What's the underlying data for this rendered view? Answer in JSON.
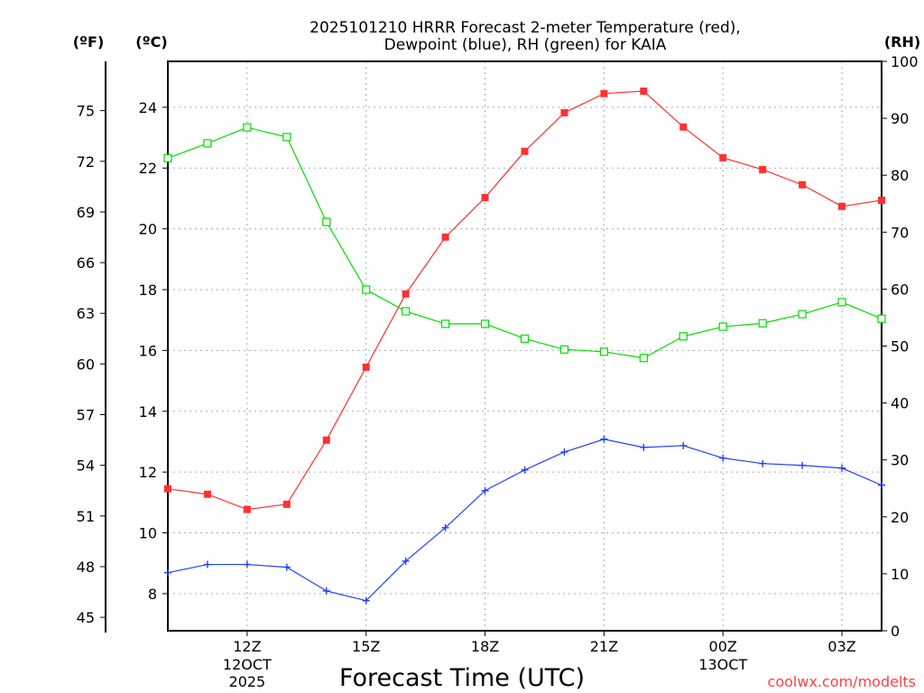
{
  "chart_data": {
    "type": "line",
    "title_lines": [
      "2025101210 HRRR Forecast 2-meter Temperature (red),",
      "Dewpoint (blue), RH (green) for KAIA"
    ],
    "xlabel": "Forecast Time (UTC)",
    "unit_labels": {
      "fahrenheit": "(ºF)",
      "celsius": "(ºC)",
      "rh": "(RH)"
    },
    "credit": "coolwx.com/modelts",
    "x_hours": [
      10,
      11,
      12,
      13,
      14,
      15,
      16,
      17,
      18,
      19,
      20,
      21,
      22,
      23,
      24,
      25,
      26,
      27,
      28
    ],
    "xlim": [
      10,
      28
    ],
    "x_ticks": [
      {
        "hour": 12,
        "label": "12Z",
        "sub": [
          "12OCT",
          "2025"
        ]
      },
      {
        "hour": 15,
        "label": "15Z",
        "sub": []
      },
      {
        "hour": 18,
        "label": "18Z",
        "sub": []
      },
      {
        "hour": 21,
        "label": "21Z",
        "sub": []
      },
      {
        "hour": 24,
        "label": "00Z",
        "sub": [
          "13OCT"
        ]
      },
      {
        "hour": 27,
        "label": "03Z",
        "sub": []
      }
    ],
    "celsius_lim": [
      6.78,
      25.51
    ],
    "celsius_ticks": [
      8,
      10,
      12,
      14,
      16,
      18,
      20,
      22,
      24
    ],
    "fahrenheit_ticks": [
      45,
      48,
      51,
      54,
      57,
      60,
      63,
      66,
      69,
      72,
      75
    ],
    "rh_lim": [
      0,
      100
    ],
    "rh_ticks": [
      0,
      10,
      20,
      30,
      40,
      50,
      60,
      70,
      80,
      90,
      100
    ],
    "series": [
      {
        "name": "Temperature",
        "axis": "celsius",
        "color": "#ff3030",
        "marker": "filled-square",
        "values": [
          11.45,
          11.27,
          10.77,
          10.94,
          13.05,
          15.45,
          17.86,
          19.73,
          21.03,
          22.55,
          23.82,
          24.45,
          24.53,
          23.35,
          22.34,
          21.95,
          21.45,
          20.74,
          20.94
        ]
      },
      {
        "name": "Dewpoint",
        "axis": "celsius",
        "color": "#2040ff",
        "marker": "plus",
        "values": [
          8.69,
          8.96,
          8.96,
          8.87,
          8.09,
          7.77,
          9.07,
          10.17,
          11.39,
          12.07,
          12.66,
          13.08,
          12.81,
          12.87,
          12.46,
          12.28,
          12.22,
          12.13,
          11.57
        ]
      },
      {
        "name": "RH",
        "axis": "rh",
        "color": "#00dd00",
        "marker": "open-square",
        "values": [
          83.0,
          85.6,
          88.4,
          86.7,
          71.8,
          59.9,
          56.1,
          53.9,
          53.9,
          51.3,
          49.4,
          49.0,
          47.9,
          51.7,
          53.4,
          54.0,
          55.6,
          57.7,
          54.8
        ]
      }
    ]
  }
}
